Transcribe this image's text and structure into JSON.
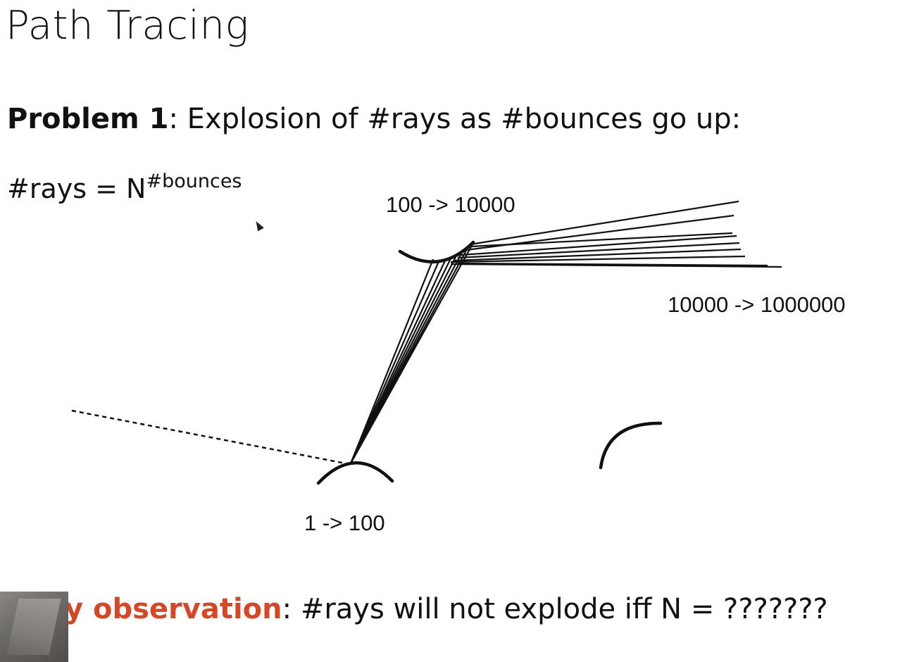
{
  "slide": {
    "title": "Path Tracing",
    "problem": {
      "label": "Problem 1",
      "text": ": Explosion of #rays as #bounces go up:"
    },
    "formula": {
      "base": "#rays = N",
      "exponent": "#bounces"
    },
    "diagram": {
      "label_first_bounce": "1 -> 100",
      "label_second_bounce": "100 -> 10000",
      "label_third_bounce": "10000 -> 1000000"
    },
    "observation": {
      "keyword": "y observation",
      "text": ": #rays will not explode iff N = ???????"
    }
  }
}
